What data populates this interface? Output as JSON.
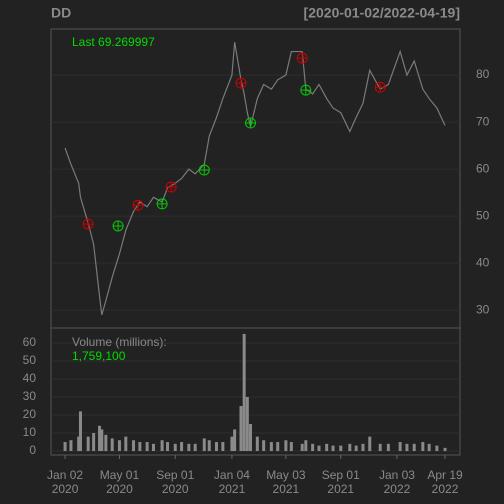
{
  "chart_data": [
    {
      "type": "line",
      "title": "DD",
      "subtitle": "[2020-01-02/2022-04-19]",
      "annotation": "Last 69.269997",
      "annotation_color": "#00dd00",
      "x": [
        "2020-01-02",
        "2020-01-15",
        "2020-02-01",
        "2020-02-05",
        "2020-02-22",
        "2020-03-05",
        "2020-03-18",
        "2020-03-23",
        "2020-04-01",
        "2020-04-15",
        "2020-05-01",
        "2020-05-15",
        "2020-06-01",
        "2020-06-15",
        "2020-07-01",
        "2020-07-15",
        "2020-08-03",
        "2020-08-15",
        "2020-09-01",
        "2020-09-15",
        "2020-10-01",
        "2020-10-15",
        "2020-11-04",
        "2020-11-15",
        "2020-12-01",
        "2020-12-15",
        "2021-01-04",
        "2021-01-10",
        "2021-01-24",
        "2021-01-31",
        "2021-02-07",
        "2021-02-14",
        "2021-03-01",
        "2021-03-15",
        "2021-04-01",
        "2021-04-15",
        "2021-05-03",
        "2021-05-15",
        "2021-06-08",
        "2021-06-16",
        "2021-07-01",
        "2021-07-15",
        "2021-08-01",
        "2021-08-15",
        "2021-09-01",
        "2021-09-21",
        "2021-10-05",
        "2021-10-20",
        "2021-11-04",
        "2021-11-27",
        "2021-12-15",
        "2022-01-10",
        "2022-01-25",
        "2022-02-10",
        "2022-03-01",
        "2022-03-15",
        "2022-04-01",
        "2022-04-19"
      ],
      "series": [
        {
          "color": "#7a7a7a",
          "values": [
            64.5,
            61,
            57,
            54,
            48.5,
            44,
            33,
            29,
            32,
            37,
            42,
            47,
            51,
            53,
            52,
            54,
            53,
            56,
            57,
            58,
            60,
            59,
            61,
            67,
            71,
            75,
            80,
            87,
            79,
            76,
            72,
            69,
            75,
            78,
            77,
            79,
            80,
            85,
            85,
            77,
            76,
            78,
            75,
            73,
            72,
            68,
            71,
            74,
            81,
            77,
            78,
            85,
            80,
            83,
            77,
            75,
            73,
            69.27
          ]
        }
      ],
      "markers": [
        {
          "color": "#cc0000",
          "x": [
            "2020-02-22",
            "2020-06-11",
            "2020-08-23",
            "2021-01-24",
            "2021-06-08",
            "2021-11-27"
          ],
          "values": [
            48.3,
            52.3,
            56.2,
            78.3,
            83.6,
            77.4
          ]
        },
        {
          "color": "#00cc00",
          "x": [
            "2020-04-28",
            "2020-08-03",
            "2020-11-04",
            "2021-02-14",
            "2021-06-16"
          ],
          "values": [
            47.9,
            52.6,
            59.8,
            69.8,
            76.8
          ]
        }
      ],
      "xlim": [
        "2019-12-02",
        "2022-05-22"
      ],
      "ylim": [
        26.2,
        89.8
      ],
      "yticks": [
        30,
        40,
        50,
        60,
        70,
        80
      ],
      "grid": true
    },
    {
      "type": "bar",
      "annotation": "Volume (millions):",
      "value_label": "1,759,100",
      "value_label_color": "#00dd00",
      "color": "#8a8a8a",
      "x": [
        "2020-01-02",
        "2020-01-15",
        "2020-02-01",
        "2020-02-05",
        "2020-02-22",
        "2020-03-05",
        "2020-03-18",
        "2020-03-23",
        "2020-04-01",
        "2020-04-15",
        "2020-05-01",
        "2020-05-15",
        "2020-06-01",
        "2020-06-15",
        "2020-07-01",
        "2020-07-15",
        "2020-08-03",
        "2020-08-15",
        "2020-09-01",
        "2020-09-15",
        "2020-10-01",
        "2020-10-15",
        "2020-11-04",
        "2020-11-15",
        "2020-12-01",
        "2020-12-15",
        "2021-01-04",
        "2021-01-10",
        "2021-01-24",
        "2021-01-31",
        "2021-02-07",
        "2021-02-14",
        "2021-03-01",
        "2021-03-15",
        "2021-04-01",
        "2021-04-15",
        "2021-05-03",
        "2021-05-15",
        "2021-06-08",
        "2021-06-16",
        "2021-07-01",
        "2021-07-15",
        "2021-08-01",
        "2021-08-15",
        "2021-09-01",
        "2021-09-21",
        "2021-10-05",
        "2021-10-20",
        "2021-11-04",
        "2021-11-27",
        "2021-12-15",
        "2022-01-10",
        "2022-01-25",
        "2022-02-10",
        "2022-03-01",
        "2022-03-15",
        "2022-04-01",
        "2022-04-19"
      ],
      "values": [
        5,
        6,
        8,
        22,
        8,
        10,
        14,
        12,
        9,
        7,
        6,
        8,
        6,
        5,
        5,
        4,
        6,
        5,
        4,
        5,
        4,
        4,
        7,
        6,
        5,
        5,
        8,
        12,
        25,
        65,
        30,
        15,
        8,
        6,
        5,
        5,
        6,
        5,
        4,
        6,
        4,
        3,
        4,
        3,
        3,
        4,
        3,
        4,
        8,
        4,
        4,
        5,
        4,
        4,
        5,
        4,
        3,
        1.7591
      ],
      "xlim": [
        "2019-12-02",
        "2022-05-22"
      ],
      "ylim": [
        -2.2,
        68.3
      ],
      "yticks": [
        0,
        10,
        20,
        30,
        40,
        50,
        60
      ],
      "xticks": [
        {
          "value": "2020-01-02",
          "label": "Jan 02\n2020"
        },
        {
          "value": "2020-05-01",
          "label": "May 01\n2020"
        },
        {
          "value": "2020-09-01",
          "label": "Sep 01\n2020"
        },
        {
          "value": "2021-01-04",
          "label": "Jan 04\n2021"
        },
        {
          "value": "2021-05-03",
          "label": "May 03\n2021"
        },
        {
          "value": "2021-09-01",
          "label": "Sep 01\n2021"
        },
        {
          "value": "2022-01-03",
          "label": "Jan 03\n2022"
        },
        {
          "value": "2022-04-19",
          "label": "Apr 19\n2022"
        }
      ],
      "grid": true
    }
  ]
}
